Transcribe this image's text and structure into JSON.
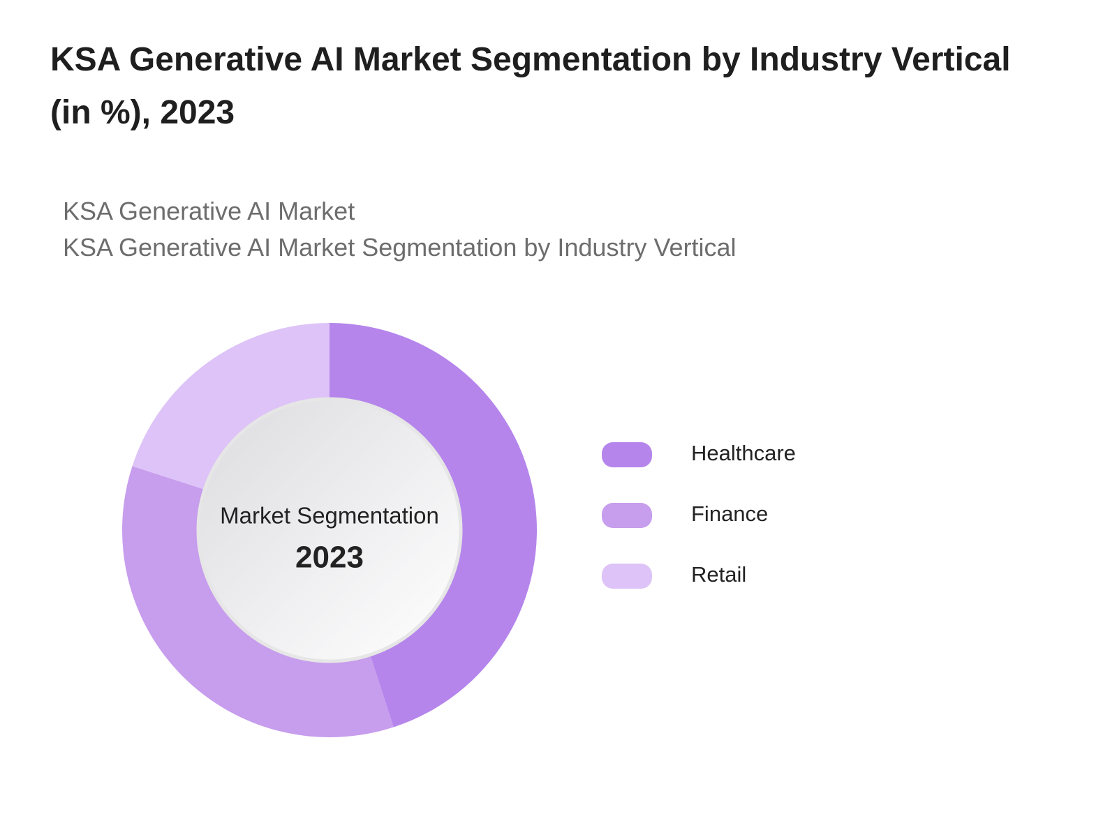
{
  "chart_data": {
    "type": "donut",
    "title": "KSA Generative AI Market Segmentation by Industry Vertical (in %), 2023",
    "subtitle": [
      "KSA Generative AI Market",
      "KSA Generative AI Market Segmentation by Industry Vertical"
    ],
    "center_label": "Market Segmentation",
    "center_value": "2023",
    "categories": [
      "Healthcare",
      "Finance",
      "Retail"
    ],
    "values": [
      45,
      35,
      20
    ],
    "colors": [
      "#b585ec",
      "#c79ded",
      "#ddc3f7"
    ]
  }
}
